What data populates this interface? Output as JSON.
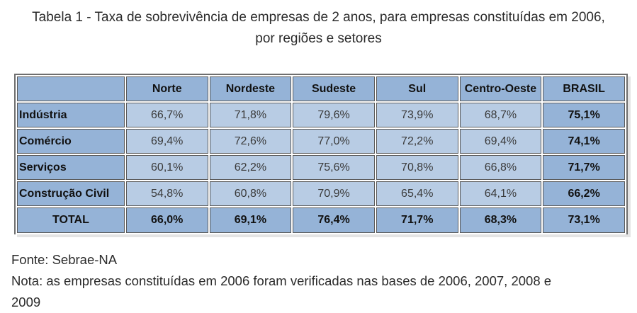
{
  "title": {
    "line1": "Tabela 1 - Taxa de sobrevivência de empresas de 2 anos, para empresas constituídas em 2006,",
    "line2": "por regiões e setores"
  },
  "table": {
    "columns": [
      "Norte",
      "Nordeste",
      "Sudeste",
      "Sul",
      "Centro-Oeste",
      "BRASIL"
    ],
    "rows": [
      {
        "label": "Indústria",
        "values": [
          "66,7%",
          "71,8%",
          "79,6%",
          "73,9%",
          "68,7%",
          "75,1%"
        ]
      },
      {
        "label": "Comércio",
        "values": [
          "69,4%",
          "72,6%",
          "77,0%",
          "72,2%",
          "69,4%",
          "74,1%"
        ]
      },
      {
        "label": "Serviços",
        "values": [
          "60,1%",
          "62,2%",
          "75,6%",
          "70,8%",
          "66,8%",
          "71,7%"
        ]
      },
      {
        "label": "Construção Civil",
        "values": [
          "54,8%",
          "60,8%",
          "70,9%",
          "65,4%",
          "64,1%",
          "66,2%"
        ]
      }
    ],
    "total": {
      "label": "TOTAL",
      "values": [
        "66,0%",
        "69,1%",
        "76,4%",
        "71,7%",
        "68,3%",
        "73,1%"
      ]
    }
  },
  "footer": {
    "source": "Fonte: Sebrae-NA",
    "note_line1": "Nota: as empresas constituídas em 2006 foram verificadas nas bases de 2006, 2007, 2008 e",
    "note_line2": "2009"
  },
  "colors": {
    "header_fill": "#95b3d7",
    "cell_fill": "#b8cce4",
    "border": "#5a5a5a"
  }
}
